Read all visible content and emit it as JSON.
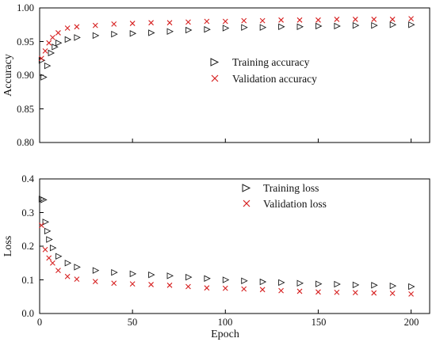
{
  "chart_data": [
    {
      "type": "scatter",
      "title": "",
      "xlabel": "",
      "ylabel": "Accuracy",
      "xlim": [
        0,
        210
      ],
      "ylim": [
        0.8,
        1.0
      ],
      "x_ticks": [
        0,
        50,
        100,
        150,
        200
      ],
      "x_tick_labels": [
        "0",
        "50",
        "100",
        "150",
        "200"
      ],
      "y_ticks": [
        0.8,
        0.85,
        0.9,
        0.95,
        1.0
      ],
      "y_tick_labels": [
        "0.80",
        "0.85",
        "0.90",
        "0.95",
        "1.00"
      ],
      "legend_position": "center-right",
      "grid": false,
      "series": [
        {
          "name": "Training accuracy",
          "marker": "triangle-right-open",
          "color": "#1a1a1a",
          "x": [
            1,
            2,
            4,
            6,
            8,
            10,
            15,
            20,
            30,
            40,
            50,
            60,
            70,
            80,
            90,
            100,
            110,
            120,
            130,
            140,
            150,
            160,
            170,
            180,
            190,
            200
          ],
          "values": [
            0.922,
            0.897,
            0.914,
            0.933,
            0.942,
            0.948,
            0.953,
            0.956,
            0.959,
            0.961,
            0.962,
            0.963,
            0.965,
            0.967,
            0.968,
            0.97,
            0.971,
            0.971,
            0.972,
            0.972,
            0.973,
            0.973,
            0.974,
            0.974,
            0.975,
            0.975
          ]
        },
        {
          "name": "Validation accuracy",
          "marker": "x",
          "color": "#d62020",
          "x": [
            1,
            3,
            5,
            7,
            10,
            15,
            20,
            30,
            40,
            50,
            60,
            70,
            80,
            90,
            100,
            110,
            120,
            130,
            140,
            150,
            160,
            170,
            180,
            190,
            200
          ],
          "values": [
            0.925,
            0.936,
            0.948,
            0.956,
            0.963,
            0.97,
            0.972,
            0.974,
            0.976,
            0.977,
            0.978,
            0.978,
            0.979,
            0.98,
            0.98,
            0.981,
            0.981,
            0.982,
            0.982,
            0.982,
            0.983,
            0.983,
            0.983,
            0.983,
            0.984
          ]
        }
      ]
    },
    {
      "type": "scatter",
      "title": "",
      "xlabel": "Epoch",
      "ylabel": "Loss",
      "xlim": [
        0,
        210
      ],
      "ylim": [
        0.0,
        0.4
      ],
      "x_ticks": [
        0,
        50,
        100,
        150,
        200
      ],
      "x_tick_labels": [
        "0",
        "50",
        "100",
        "150",
        "200"
      ],
      "y_ticks": [
        0.0,
        0.1,
        0.2,
        0.3,
        0.4
      ],
      "y_tick_labels": [
        "0.0",
        "0.1",
        "0.2",
        "0.3",
        "0.4"
      ],
      "legend_position": "top-center",
      "grid": false,
      "series": [
        {
          "name": "Training loss",
          "marker": "triangle-right-open",
          "color": "#1a1a1a",
          "x": [
            1,
            2,
            3,
            4,
            5,
            7,
            10,
            15,
            20,
            30,
            40,
            50,
            60,
            70,
            80,
            90,
            100,
            110,
            120,
            130,
            140,
            150,
            160,
            170,
            180,
            190,
            200
          ],
          "values": [
            0.34,
            0.338,
            0.272,
            0.245,
            0.22,
            0.195,
            0.17,
            0.15,
            0.138,
            0.128,
            0.122,
            0.118,
            0.115,
            0.112,
            0.108,
            0.104,
            0.1,
            0.097,
            0.094,
            0.092,
            0.09,
            0.088,
            0.087,
            0.085,
            0.084,
            0.082,
            0.08
          ]
        },
        {
          "name": "Validation loss",
          "marker": "x",
          "color": "#d62020",
          "x": [
            1,
            3,
            5,
            7,
            10,
            15,
            20,
            30,
            40,
            50,
            60,
            70,
            80,
            90,
            100,
            110,
            120,
            130,
            140,
            150,
            160,
            170,
            180,
            190,
            200
          ],
          "values": [
            0.262,
            0.19,
            0.165,
            0.15,
            0.128,
            0.11,
            0.102,
            0.095,
            0.09,
            0.088,
            0.086,
            0.084,
            0.08,
            0.076,
            0.075,
            0.073,
            0.071,
            0.068,
            0.066,
            0.064,
            0.063,
            0.062,
            0.061,
            0.06,
            0.058
          ]
        }
      ]
    }
  ]
}
